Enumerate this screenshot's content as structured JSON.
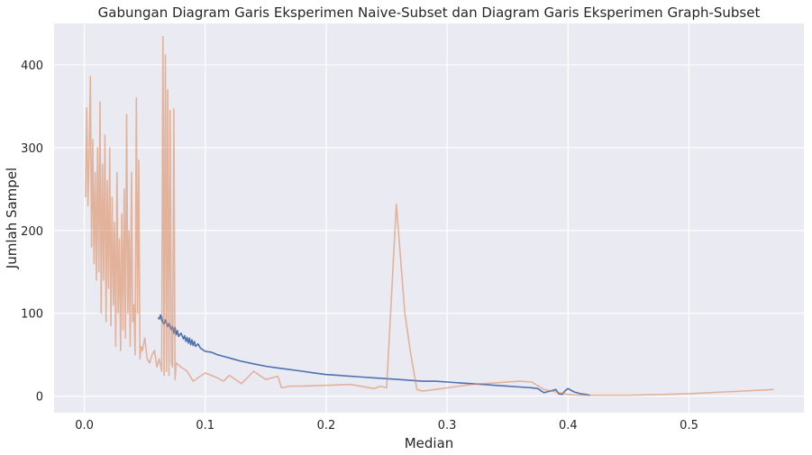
{
  "chart_data": {
    "type": "line",
    "title": "Gabungan Diagram Garis Eksperimen Naive-Subset dan Diagram Garis Eksperimen Graph-Subset",
    "xlabel": "Median",
    "ylabel": "Jumlah Sampel",
    "xlim": [
      -0.025,
      0.595
    ],
    "ylim": [
      -20,
      450
    ],
    "x_ticks": [
      0.0,
      0.1,
      0.2,
      0.3,
      0.4,
      0.5
    ],
    "x_tick_labels": [
      "0.0",
      "0.1",
      "0.2",
      "0.3",
      "0.4",
      "0.5"
    ],
    "y_ticks": [
      0,
      100,
      200,
      300,
      400
    ],
    "y_tick_labels": [
      "0",
      "100",
      "200",
      "300",
      "400"
    ],
    "grid": true,
    "background": "#eaeaf2",
    "series": [
      {
        "color": "#4c72b0",
        "x": [
          0.061,
          0.062,
          0.063,
          0.064,
          0.064,
          0.065,
          0.066,
          0.067,
          0.069,
          0.07,
          0.072,
          0.073,
          0.074,
          0.075,
          0.076,
          0.077,
          0.078,
          0.08,
          0.082,
          0.083,
          0.084,
          0.085,
          0.086,
          0.087,
          0.088,
          0.089,
          0.09,
          0.091,
          0.092,
          0.094,
          0.096,
          0.1,
          0.105,
          0.11,
          0.115,
          0.12,
          0.125,
          0.13,
          0.14,
          0.15,
          0.16,
          0.17,
          0.18,
          0.19,
          0.2,
          0.21,
          0.22,
          0.23,
          0.24,
          0.25,
          0.26,
          0.27,
          0.28,
          0.29,
          0.3,
          0.31,
          0.32,
          0.33,
          0.34,
          0.35,
          0.36,
          0.37,
          0.375,
          0.38,
          0.385,
          0.39,
          0.392,
          0.395,
          0.398,
          0.4,
          0.405,
          0.41,
          0.415,
          0.418
        ],
        "y": [
          95,
          93,
          98,
          91,
          96,
          89,
          87,
          92,
          84,
          88,
          80,
          84,
          76,
          83,
          74,
          79,
          72,
          76,
          69,
          73,
          66,
          71,
          64,
          70,
          62,
          68,
          61,
          66,
          60,
          63,
          58,
          54,
          53,
          50,
          48,
          46,
          44,
          42,
          39,
          36,
          34,
          32,
          30,
          28,
          26,
          25,
          24,
          23,
          22,
          21,
          20,
          19,
          18,
          18,
          17,
          16,
          15,
          14,
          13,
          12,
          11,
          10,
          9,
          4,
          6,
          8,
          3,
          2,
          7,
          9,
          5,
          3,
          2,
          1
        ]
      },
      {
        "color": "#dd8452",
        "opacity": 0.55,
        "x": [
          0.001,
          0.002,
          0.003,
          0.004,
          0.005,
          0.006,
          0.007,
          0.008,
          0.009,
          0.01,
          0.011,
          0.012,
          0.013,
          0.014,
          0.015,
          0.016,
          0.017,
          0.018,
          0.019,
          0.02,
          0.021,
          0.022,
          0.023,
          0.024,
          0.025,
          0.026,
          0.027,
          0.028,
          0.029,
          0.03,
          0.031,
          0.032,
          0.033,
          0.034,
          0.035,
          0.036,
          0.037,
          0.038,
          0.039,
          0.04,
          0.041,
          0.042,
          0.043,
          0.044,
          0.045,
          0.046,
          0.047,
          0.048,
          0.05,
          0.052,
          0.054,
          0.056,
          0.058,
          0.06,
          0.062,
          0.064,
          0.065,
          0.066,
          0.067,
          0.068,
          0.069,
          0.07,
          0.071,
          0.072,
          0.073,
          0.074,
          0.075,
          0.076,
          0.08,
          0.085,
          0.09,
          0.1,
          0.11,
          0.115,
          0.12,
          0.13,
          0.14,
          0.15,
          0.16,
          0.163,
          0.17,
          0.18,
          0.2,
          0.22,
          0.24,
          0.245,
          0.25,
          0.258,
          0.265,
          0.27,
          0.275,
          0.28,
          0.3,
          0.32,
          0.34,
          0.36,
          0.37,
          0.38,
          0.39,
          0.4,
          0.41,
          0.42,
          0.45,
          0.48,
          0.5,
          0.53,
          0.57
        ],
        "y": [
          240,
          348,
          230,
          290,
          386,
          180,
          310,
          160,
          270,
          140,
          300,
          150,
          355,
          100,
          280,
          140,
          315,
          90,
          260,
          130,
          300,
          85,
          240,
          110,
          210,
          60,
          270,
          100,
          190,
          55,
          220,
          80,
          250,
          70,
          340,
          100,
          200,
          60,
          270,
          90,
          110,
          50,
          360,
          100,
          285,
          45,
          60,
          55,
          70,
          45,
          40,
          50,
          55,
          35,
          45,
          30,
          434,
          25,
          412,
          30,
          370,
          25,
          345,
          40,
          35,
          347,
          20,
          40,
          35,
          30,
          18,
          28,
          22,
          18,
          25,
          15,
          30,
          20,
          24,
          10,
          12,
          12,
          13,
          14,
          9,
          12,
          10,
          232,
          100,
          50,
          8,
          6,
          10,
          14,
          16,
          18,
          17,
          8,
          5,
          2,
          1,
          1,
          1,
          2,
          3,
          5,
          8
        ]
      }
    ]
  }
}
